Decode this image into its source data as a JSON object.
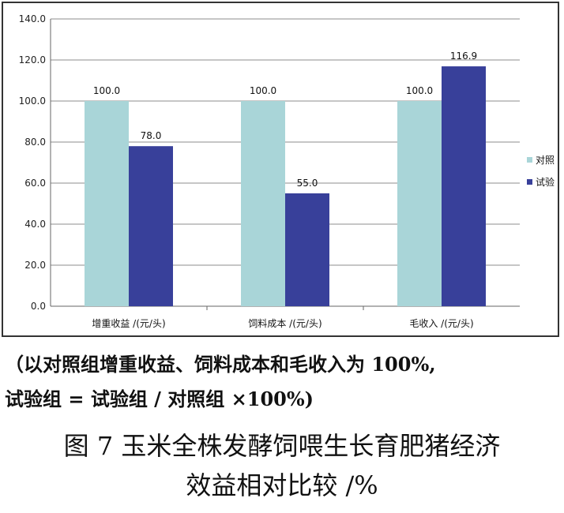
{
  "chart_data": {
    "type": "bar",
    "categories": [
      "增重收益 /(元/头)",
      "饲料成本 /(元/头)",
      "毛收入 /(元/头)"
    ],
    "series": [
      {
        "name": "对照",
        "values": [
          100.0,
          100.0,
          100.0
        ],
        "color": "#a9d5d8"
      },
      {
        "name": "试验",
        "values": [
          78.0,
          55.0,
          116.9
        ],
        "color": "#38409a"
      }
    ],
    "ylim": [
      0,
      140
    ],
    "yticks": [
      "0.0",
      "20.0",
      "40.0",
      "60.0",
      "80.0",
      "100.0",
      "120.0",
      "140.0"
    ],
    "grid": true,
    "legend_position": "right"
  },
  "note": {
    "line1": "（以对照组增重收益、饲料成本和毛收入为 100%,",
    "line2": "试验组 = 试验组 / 对照组 ×100%)"
  },
  "caption": {
    "line1": "图 7 玉米全株发酵饲喂生长育肥猪经济",
    "line2": "效益相对比较 /%"
  }
}
